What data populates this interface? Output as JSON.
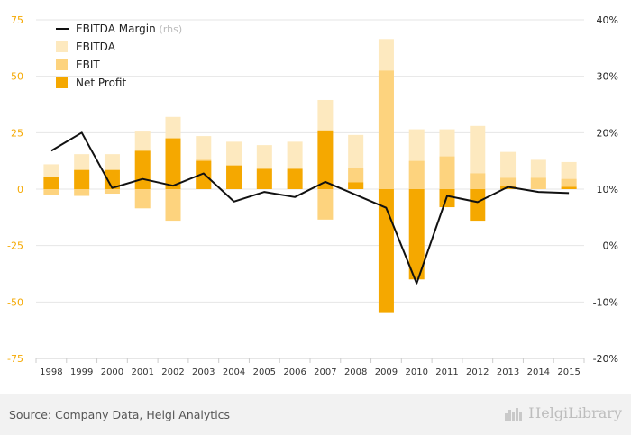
{
  "chart_data": {
    "type": "bar",
    "categories": [
      "1998",
      "1999",
      "2000",
      "2001",
      "2002",
      "2003",
      "2004",
      "2005",
      "2006",
      "2007",
      "2008",
      "2009",
      "2010",
      "2011",
      "2012",
      "2013",
      "2014",
      "2015"
    ],
    "series": [
      {
        "name": "EBITDA",
        "kind": "bar",
        "axis": "left",
        "color": "#fde9bf",
        "values": [
          11,
          15.5,
          15.5,
          25.5,
          32,
          23.5,
          21,
          19.5,
          21,
          39.5,
          24,
          66.5,
          26.5,
          26.5,
          28,
          16.5,
          13,
          12
        ]
      },
      {
        "name": "EBIT",
        "kind": "bar",
        "axis": "left",
        "color": "#fdd37e",
        "values_pos": [
          0,
          0,
          0,
          0,
          0,
          13,
          0,
          0,
          0,
          0,
          9.5,
          52.5,
          12.5,
          14.5,
          7,
          5,
          5,
          4.5
        ],
        "values_neg": [
          -2.5,
          -3,
          -2,
          -8.5,
          -14,
          0,
          0,
          0,
          0,
          -13.5,
          0,
          0,
          0,
          0,
          0,
          0,
          0,
          0
        ]
      },
      {
        "name": "Net Profit",
        "kind": "bar",
        "axis": "left",
        "color": "#f5a800",
        "values": [
          5.5,
          8.5,
          8.5,
          17,
          22.5,
          12.5,
          10.5,
          9,
          9,
          26,
          3,
          -54.5,
          -40,
          -8,
          -14,
          1.5,
          0,
          1
        ]
      },
      {
        "name": "EBITDA Margin",
        "name_suffix": "(rhs)",
        "kind": "line",
        "axis": "right",
        "color": "#111111",
        "values": [
          16.8,
          20,
          10.2,
          11.8,
          10.6,
          12.8,
          7.8,
          9.5,
          8.6,
          11.3,
          9,
          6.7,
          -6.7,
          8.8,
          7.7,
          10.4,
          9.5,
          9.3
        ]
      }
    ],
    "y_left": {
      "ticks": [
        75,
        50,
        25,
        0,
        -25,
        -50,
        -75
      ],
      "tick_labels": [
        "75",
        "50",
        "25",
        "0",
        "-25",
        "-50",
        "-75"
      ],
      "ylim": [
        -75,
        75
      ]
    },
    "y_right": {
      "ticks": [
        40,
        30,
        20,
        10,
        0,
        -10,
        -20
      ],
      "tick_labels": [
        "40%",
        "30%",
        "20%",
        "10%",
        "0%",
        "-10%",
        "-20%"
      ],
      "ylim": [
        -20,
        40
      ]
    },
    "grid": true,
    "legend": "top-left",
    "axis_label_color": "#f5a800"
  },
  "footer": {
    "source": "Source: Company Data, Helgi Analytics",
    "brand": "HelgiLibrary"
  }
}
